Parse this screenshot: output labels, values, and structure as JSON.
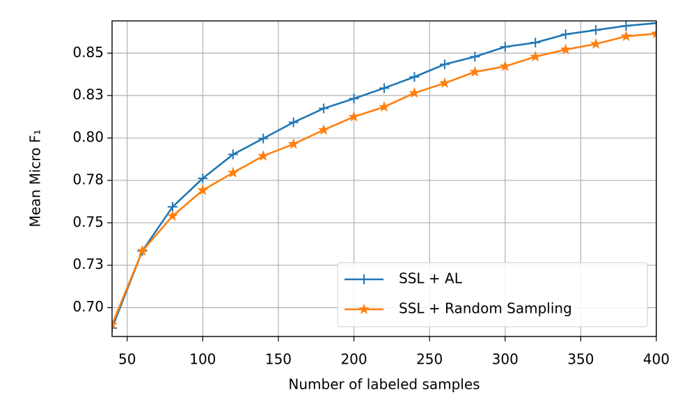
{
  "chart_data": {
    "type": "line",
    "x_label": "Number of labeled samples",
    "y_label": "Mean Micro F₁",
    "x": [
      40,
      60,
      80,
      100,
      120,
      140,
      160,
      180,
      200,
      220,
      240,
      260,
      280,
      300,
      320,
      340,
      360,
      380,
      400
    ],
    "series": [
      {
        "name": "SSL + AL",
        "color": "#1f77b4",
        "marker": "plus",
        "values": [
          0.688,
          0.7334,
          0.7594,
          0.7762,
          0.7903,
          0.7997,
          0.8092,
          0.8174,
          0.8232,
          0.8294,
          0.836,
          0.8434,
          0.8479,
          0.8537,
          0.8562,
          0.8611,
          0.8636,
          0.8661,
          0.8677
        ]
      },
      {
        "name": "SSL + Random Sampling",
        "color": "#ff7f0e",
        "marker": "star",
        "values": [
          0.69,
          0.7334,
          0.754,
          0.7692,
          0.7795,
          0.7894,
          0.7964,
          0.8047,
          0.8125,
          0.8183,
          0.8265,
          0.8323,
          0.8389,
          0.8422,
          0.8479,
          0.8521,
          0.8554,
          0.8599,
          0.8615
        ]
      }
    ],
    "xlim": [
      40,
      400
    ],
    "xticks": [
      50,
      100,
      150,
      200,
      250,
      300,
      350,
      400
    ],
    "ylim": [
      0.683,
      0.869
    ],
    "yticks": [
      {
        "value": 0.7,
        "label": "0.70"
      },
      {
        "value": 0.725,
        "label": "0.73"
      },
      {
        "value": 0.75,
        "label": "0.75"
      },
      {
        "value": 0.775,
        "label": "0.78"
      },
      {
        "value": 0.8,
        "label": "0.80"
      },
      {
        "value": 0.825,
        "label": "0.83"
      },
      {
        "value": 0.85,
        "label": "0.85"
      }
    ],
    "grid": true,
    "legend": "lower right"
  }
}
